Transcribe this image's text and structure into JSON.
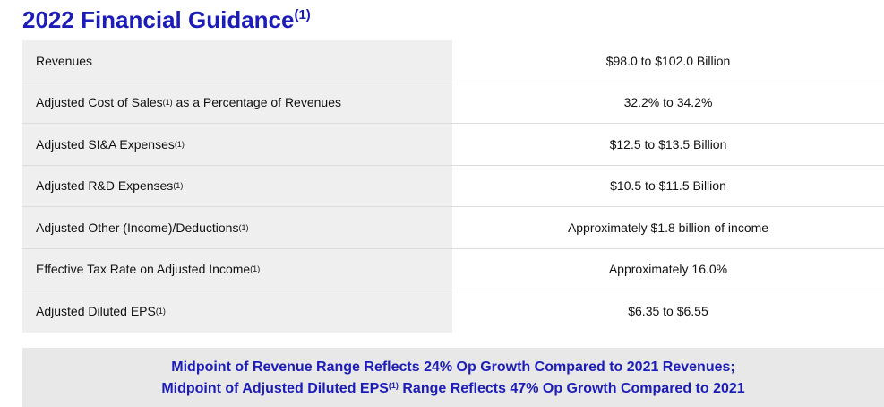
{
  "header": {
    "title": "2022 Financial Guidance",
    "title_note": "(1)"
  },
  "table": {
    "rows": [
      {
        "label": "Revenues",
        "value": "$98.0 to $102.0 Billion"
      },
      {
        "label": "Adjusted Cost of Sales",
        "note": "(1)",
        "label_after": " as a Percentage of Revenues",
        "value": "32.2% to 34.2%"
      },
      {
        "label": "Adjusted SI&A Expenses",
        "note": "(1)",
        "value": "$12.5 to $13.5 Billion"
      },
      {
        "label": "Adjusted R&D Expenses",
        "note": "(1)",
        "value": "$10.5 to $11.5 Billion"
      },
      {
        "label": "Adjusted Other (Income)/Deductions",
        "note": "(1)",
        "value": "Approximately $1.8 billion of income"
      },
      {
        "label": "Effective Tax Rate on Adjusted Income",
        "note": "(1)",
        "value": "Approximately 16.0%"
      },
      {
        "label": "Adjusted Diluted EPS",
        "note": "(1)",
        "value": "$6.35 to $6.55"
      }
    ]
  },
  "footer": {
    "lines": [
      {
        "text": "Midpoint of Revenue Range Reflects 24% Op Growth Compared to 2021 Revenues;"
      },
      {
        "text": "Midpoint of Adjusted Diluted EPS",
        "note": "(1)",
        "text_after": " Range Reflects 47% Op Growth Compared to 2021"
      }
    ]
  }
}
